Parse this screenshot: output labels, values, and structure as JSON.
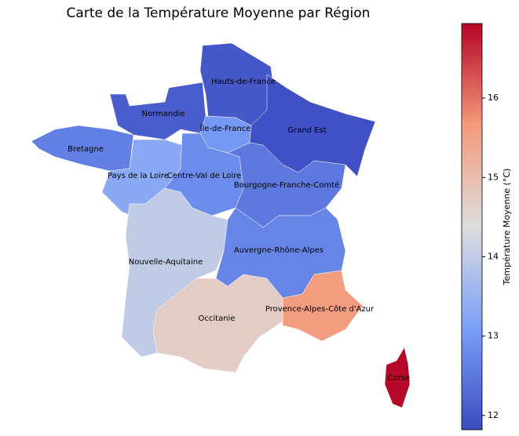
{
  "chart_data": {
    "type": "choropleth",
    "title": "Carte de la Température Moyenne par Région",
    "colormap": "coolwarm",
    "clim": [
      11.82,
      16.94
    ],
    "colorbar_label": "Température Moyenne (°C)",
    "colorbar_ticks": [
      12,
      13,
      14,
      15,
      16
    ],
    "regions": [
      {
        "name": "Hauts-de-France",
        "value": 12.0
      },
      {
        "name": "Normandie",
        "value": 12.1
      },
      {
        "name": "Île-de-France",
        "value": 13.0
      },
      {
        "name": "Grand Est",
        "value": 11.9
      },
      {
        "name": "Bretagne",
        "value": 12.6
      },
      {
        "name": "Pays de la Loire",
        "value": 13.3
      },
      {
        "name": "Centre-Val de Loire",
        "value": 12.8
      },
      {
        "name": "Bourgogne-Franche-Comté",
        "value": 12.5
      },
      {
        "name": "Nouvelle-Aquitaine",
        "value": 14.0
      },
      {
        "name": "Auvergne-Rhône-Alpes",
        "value": 12.7
      },
      {
        "name": "Occitanie",
        "value": 14.7
      },
      {
        "name": "Provence-Alpes-Côte d'Azur",
        "value": 15.6
      },
      {
        "name": "Corse",
        "value": 16.9
      }
    ]
  }
}
